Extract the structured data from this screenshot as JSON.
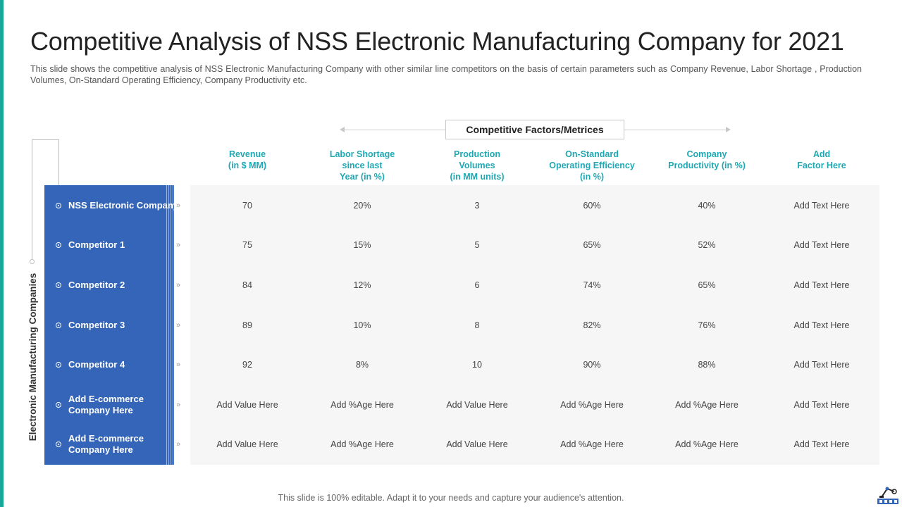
{
  "title": "Competitive Analysis of NSS Electronic Manufacturing Company for 2021",
  "subtitle": "This slide shows the competitive analysis of NSS Electronic Manufacturing Company with other similar line competitors on the basis of certain parameters such as Company Revenue, Labor Shortage , Production Volumes, On-Standard Operating Efficiency, Company Productivity etc.",
  "factors_header": "Competitive Factors/Metrices",
  "side_label": "Electronic Manufacturing Companies",
  "columns": [
    {
      "lines": [
        "Revenue",
        "(in $ MM)"
      ]
    },
    {
      "lines": [
        "Labor Shortage",
        "since last",
        "Year (in %)"
      ]
    },
    {
      "lines": [
        "Production",
        "Volumes",
        "(in MM units)"
      ]
    },
    {
      "lines": [
        "On-Standard",
        "Operating Efficiency",
        "(in %)"
      ]
    },
    {
      "lines": [
        "Company",
        "Productivity (in %)"
      ]
    },
    {
      "lines": [
        "Add",
        "Factor Here"
      ]
    }
  ],
  "rows": [
    {
      "label": [
        "NSS Electronic Company"
      ],
      "cells": [
        "70",
        "20%",
        "3",
        "60%",
        "40%",
        "Add Text Here"
      ]
    },
    {
      "label": [
        "Competitor 1"
      ],
      "cells": [
        "75",
        "15%",
        "5",
        "65%",
        "52%",
        "Add Text Here"
      ]
    },
    {
      "label": [
        "Competitor 2"
      ],
      "cells": [
        "84",
        "12%",
        "6",
        "74%",
        "65%",
        "Add Text Here"
      ]
    },
    {
      "label": [
        "Competitor 3"
      ],
      "cells": [
        "89",
        "10%",
        "8",
        "82%",
        "76%",
        "Add Text Here"
      ]
    },
    {
      "label": [
        "Competitor 4"
      ],
      "cells": [
        "92",
        "8%",
        "10",
        "90%",
        "88%",
        "Add Text Here"
      ]
    },
    {
      "label": [
        "Add E-commerce",
        "Company Here"
      ],
      "cells": [
        "Add Value Here",
        "Add %Age Here",
        "Add Value Here",
        "Add %Age Here",
        "Add %Age Here",
        "Add Text Here"
      ]
    },
    {
      "label": [
        "Add E-commerce",
        "Company Here"
      ],
      "cells": [
        "Add Value Here",
        "Add %Age Here",
        "Add Value Here",
        "Add %Age Here",
        "Add %Age Here",
        "Add Text Here"
      ]
    }
  ],
  "footer": "This slide is 100% editable. Adapt it to your needs and capture your audience's attention.",
  "colors": {
    "accent": "#17a89a",
    "panel": "#3565b8",
    "header_text": "#1fa8b4"
  },
  "icons": {
    "row_marker": "target-dot-icon",
    "row_arrow": "double-chevron-right-icon",
    "logo": "robot-arm-logo-icon"
  }
}
